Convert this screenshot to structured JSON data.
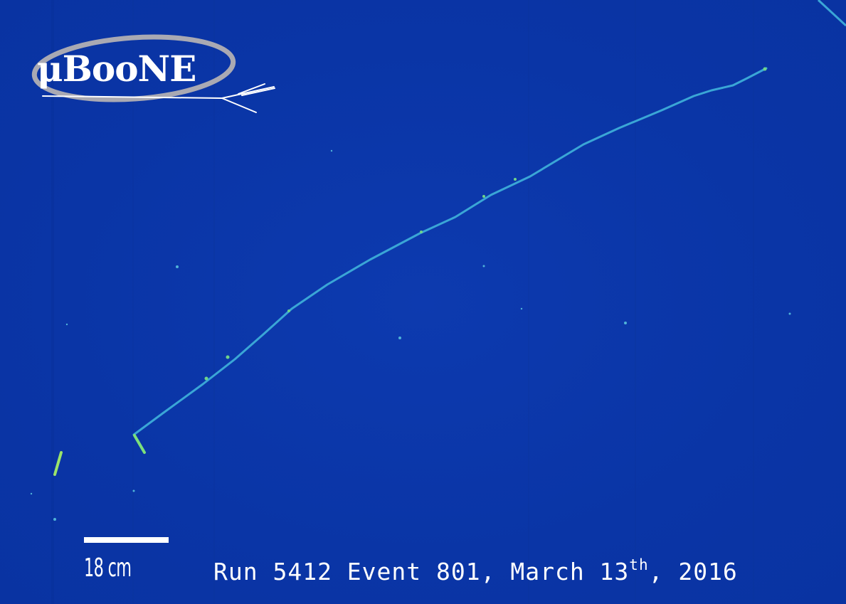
{
  "logo": {
    "text": "μBooNE"
  },
  "scale_bar": {
    "label": "18 cm"
  },
  "caption": {
    "prefix": "Run 5412 Event 801, March 13",
    "superscript": "th",
    "suffix": ", 2016"
  },
  "colors": {
    "background": "#0b36a8",
    "track": "#3aa6d6",
    "track_hot": "#7ce07a",
    "text": "#ffffff"
  }
}
